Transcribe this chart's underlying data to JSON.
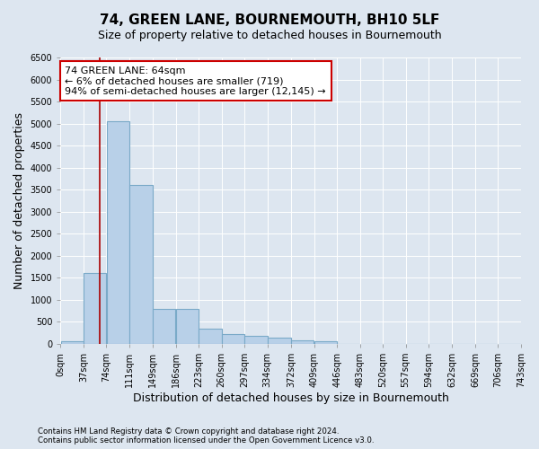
{
  "title": "74, GREEN LANE, BOURNEMOUTH, BH10 5LF",
  "subtitle": "Size of property relative to detached houses in Bournemouth",
  "xlabel": "Distribution of detached houses by size in Bournemouth",
  "ylabel": "Number of detached properties",
  "footer_lines": [
    "Contains HM Land Registry data © Crown copyright and database right 2024.",
    "Contains public sector information licensed under the Open Government Licence v3.0."
  ],
  "bar_edges": [
    0,
    37,
    74,
    111,
    149,
    186,
    223,
    260,
    297,
    334,
    372,
    409,
    446,
    483,
    520,
    557,
    594,
    632,
    669,
    706,
    743
  ],
  "bar_values": [
    50,
    1600,
    5050,
    3600,
    800,
    800,
    350,
    230,
    175,
    145,
    90,
    65,
    0,
    0,
    0,
    0,
    0,
    0,
    0,
    0
  ],
  "bar_color": "#b8d0e8",
  "bar_edge_color": "#7aaac8",
  "property_size": 64,
  "red_line_color": "#aa0000",
  "annotation_line1": "74 GREEN LANE: 64sqm",
  "annotation_line2": "← 6% of detached houses are smaller (719)",
  "annotation_line3": "94% of semi-detached houses are larger (12,145) →",
  "annotation_box_color": "#cc0000",
  "ylim": [
    0,
    6500
  ],
  "yticks": [
    0,
    500,
    1000,
    1500,
    2000,
    2500,
    3000,
    3500,
    4000,
    4500,
    5000,
    5500,
    6000,
    6500
  ],
  "bg_color": "#dde6f0",
  "plot_bg_color": "#dde6f0",
  "grid_color": "#ffffff",
  "tick_label_size": 7,
  "axis_label_size": 9,
  "title_fontsize": 11,
  "subtitle_fontsize": 9,
  "xlabel_fontsize": 9,
  "annotation_fontsize": 8
}
